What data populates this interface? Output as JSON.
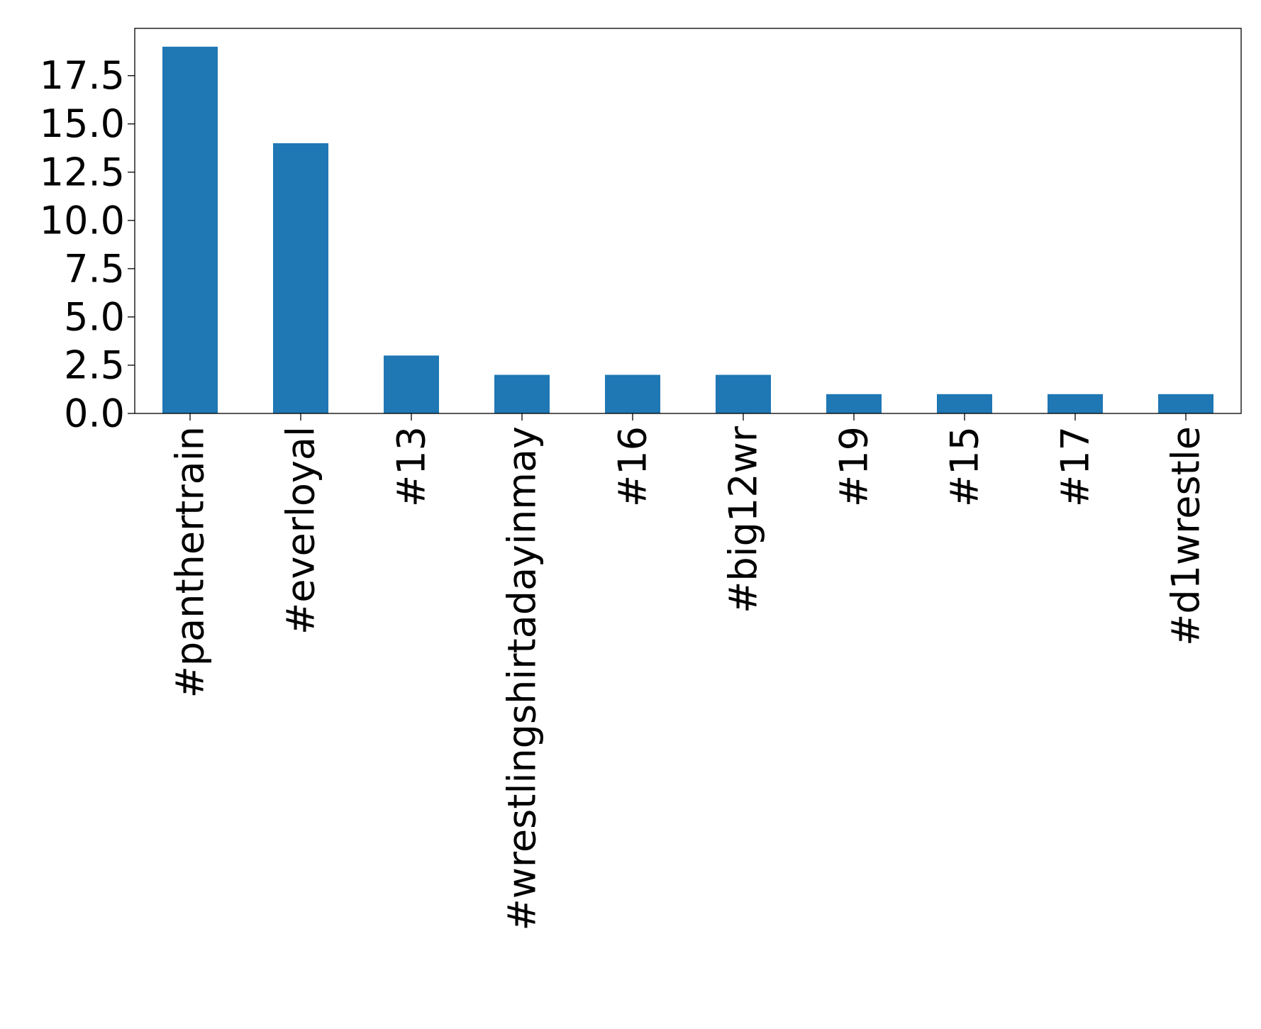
{
  "chart_data": {
    "type": "bar",
    "categories": [
      "#panthertrain",
      "#everloyal",
      "#13",
      "#wrestlingshirtadayinmay",
      "#16",
      "#big12wr",
      "#19",
      "#15",
      "#17",
      "#d1wrestle"
    ],
    "values": [
      19,
      14,
      3,
      2,
      2,
      2,
      1,
      1,
      1,
      1
    ],
    "title": "",
    "xlabel": "",
    "ylabel": "",
    "ylim": [
      0,
      19.95
    ],
    "yticks": [
      0.0,
      2.5,
      5.0,
      7.5,
      10.0,
      12.5,
      15.0,
      17.5
    ],
    "ytick_labels": [
      "0.0",
      "2.5",
      "5.0",
      "7.5",
      "10.0",
      "12.5",
      "15.0",
      "17.5"
    ],
    "grid": false,
    "legend": "none",
    "bar_color": "#1f77b4"
  }
}
